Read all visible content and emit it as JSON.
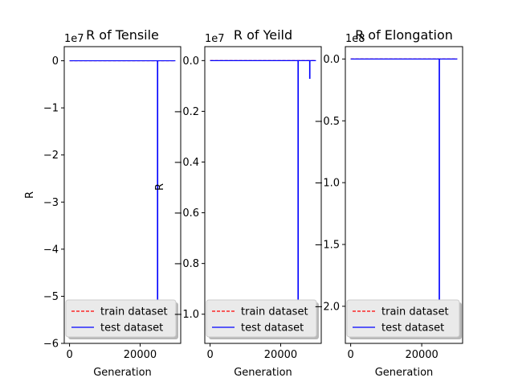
{
  "figure": {
    "background": "#ffffff",
    "train_color": "#ff0000",
    "test_color": "#0000ff"
  },
  "chart_data": [
    {
      "type": "line",
      "title": "R of Tensile",
      "xlabel": "Generation",
      "ylabel": "R",
      "y_offset_label": "1e7",
      "xlim": [
        -1500,
        31500
      ],
      "ylim": [
        -6.0,
        0.3
      ],
      "x_ticks": [
        0,
        20000
      ],
      "x_tick_labels": [
        "0",
        "20000"
      ],
      "y_ticks": [
        0,
        -1,
        -2,
        -3,
        -4,
        -5,
        -6
      ],
      "y_tick_labels": [
        "0",
        "−1",
        "−2",
        "−3",
        "−4",
        "−5",
        "−6"
      ],
      "legend": {
        "placement": "lower-left",
        "entries": [
          "train dataset",
          "test dataset"
        ]
      },
      "series": [
        {
          "name": "train dataset",
          "style": "dashed",
          "x": [
            0,
            30000
          ],
          "y": [
            0,
            0
          ]
        },
        {
          "name": "test dataset",
          "style": "solid",
          "x": [
            0,
            24900,
            24900,
            25000,
            25000,
            30000
          ],
          "y": [
            0,
            0,
            -5.15,
            -5.15,
            0,
            0
          ]
        }
      ]
    },
    {
      "type": "line",
      "title": "R of Yeild",
      "xlabel": "Generation",
      "ylabel": "R",
      "y_offset_label": "1e7",
      "xlim": [
        -1500,
        31500
      ],
      "ylim": [
        -1.115,
        0.055
      ],
      "x_ticks": [
        0,
        20000
      ],
      "x_tick_labels": [
        "0",
        "20000"
      ],
      "y_ticks": [
        0,
        -0.2,
        -0.4,
        -0.6,
        -0.8,
        -1.0
      ],
      "y_tick_labels": [
        "0.0",
        "−0.2",
        "−0.4",
        "−0.6",
        "−0.8",
        "−1.0"
      ],
      "legend": {
        "placement": "lower-left",
        "entries": [
          "train dataset",
          "test dataset"
        ]
      },
      "series": [
        {
          "name": "train dataset",
          "style": "dashed",
          "x": [
            0,
            30000
          ],
          "y": [
            0,
            0
          ]
        },
        {
          "name": "test dataset",
          "style": "solid",
          "x": [
            0,
            24900,
            24900,
            25000,
            25000,
            28200,
            28200,
            28300,
            28300,
            30000
          ],
          "y": [
            0,
            0,
            -1.0,
            -1.0,
            0,
            0,
            -0.07,
            -0.07,
            0,
            0
          ]
        }
      ]
    },
    {
      "type": "line",
      "title": "R of Elongation",
      "xlabel": "Generation",
      "ylabel": "",
      "y_offset_label": "1e8",
      "xlim": [
        -1500,
        31500
      ],
      "ylim": [
        -2.3,
        0.1
      ],
      "x_ticks": [
        0,
        20000
      ],
      "x_tick_labels": [
        "0",
        "20000"
      ],
      "y_ticks": [
        0,
        -0.5,
        -1.0,
        -1.5,
        -2.0
      ],
      "y_tick_labels": [
        "0.0",
        "−0.5",
        "−1.0",
        "−1.5",
        "−2.0"
      ],
      "legend": {
        "placement": "lower-left",
        "entries": [
          "train dataset",
          "test dataset"
        ]
      },
      "series": [
        {
          "name": "train dataset",
          "style": "dashed",
          "x": [
            0,
            30000
          ],
          "y": [
            0,
            0
          ]
        },
        {
          "name": "test dataset",
          "style": "solid",
          "x": [
            0,
            24900,
            24900,
            25000,
            25000,
            30000
          ],
          "y": [
            0,
            0,
            -2.1,
            -2.1,
            0,
            0
          ]
        }
      ]
    }
  ]
}
